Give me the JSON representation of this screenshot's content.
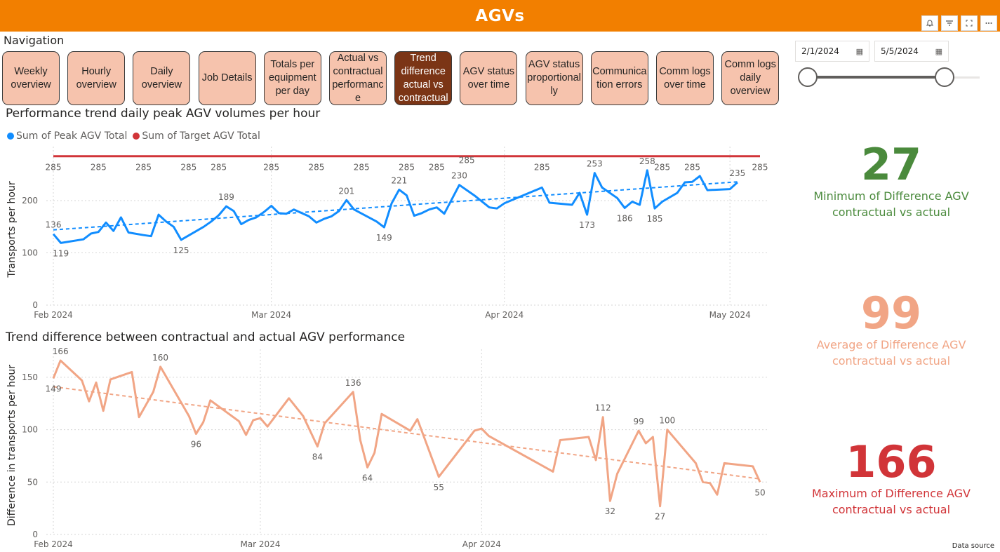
{
  "header": {
    "title": "AGVs"
  },
  "visual_header": {
    "icons": [
      "bell-icon",
      "filter-icon",
      "expand-icon",
      "more-options-icon"
    ]
  },
  "navigation": {
    "label": "Navigation",
    "buttons": [
      {
        "lines": [
          "Weekly",
          "overview"
        ]
      },
      {
        "lines": [
          "Hourly",
          "overview"
        ]
      },
      {
        "lines": [
          "Daily",
          "overview"
        ]
      },
      {
        "lines": [
          "Job Details"
        ]
      },
      {
        "lines": [
          "Totals per",
          "equipment",
          "per day"
        ]
      },
      {
        "lines": [
          "Actual vs",
          "contractual",
          "performanc",
          "e"
        ]
      },
      {
        "lines": [
          "Trend",
          "difference",
          "actual vs",
          "contractual"
        ],
        "active": true
      },
      {
        "lines": [
          "AGV status",
          "over time"
        ]
      },
      {
        "lines": [
          "AGV status",
          "proportional",
          "ly"
        ]
      },
      {
        "lines": [
          "Communica",
          "tion errors"
        ]
      },
      {
        "lines": [
          "Comm logs",
          "over time"
        ]
      },
      {
        "lines": [
          "Comm logs",
          "daily",
          "overview"
        ]
      }
    ]
  },
  "date_filter": {
    "start": "2/1/2024",
    "end": "5/5/2024"
  },
  "colors": {
    "header_bg": "#f27f00",
    "nav_btn_bg": "#f6c3ad",
    "nav_btn_active_bg": "#7b3516",
    "peak_series": "#118dff",
    "target_series": "#d13438",
    "diff_series": "#f1a585",
    "kpi_min": "#4a8a3c",
    "kpi_avg": "#f1a585",
    "kpi_max": "#d13438"
  },
  "kpis": {
    "min": {
      "value": "27",
      "label_lines": [
        "Minimum of Difference AGV",
        "contractual vs actual"
      ]
    },
    "avg": {
      "value": "99",
      "label_lines": [
        "Average of Difference AGV",
        "contractual vs actual"
      ]
    },
    "max": {
      "value": "166",
      "label_lines": [
        "Maximum of Difference AGV",
        "contractual vs actual"
      ]
    }
  },
  "footer": {
    "data_source": "Data source"
  },
  "chart_data": [
    {
      "type": "line",
      "title": "Performance trend daily peak AGV volumes per hour",
      "ylabel": "Transports per hour",
      "xlabel": "",
      "ylim": [
        0,
        290
      ],
      "yticks": [
        0,
        100,
        200
      ],
      "xlim": [
        "2024-02-01",
        "2024-05-05"
      ],
      "xticks": [
        {
          "date": "2024-02-01",
          "label": "Feb 2024"
        },
        {
          "date": "2024-03-01",
          "label": "Mar 2024"
        },
        {
          "date": "2024-04-01",
          "label": "Apr 2024"
        },
        {
          "date": "2024-05-01",
          "label": "May 2024"
        }
      ],
      "grid": true,
      "legend_position": "top-left",
      "series": [
        {
          "name": "Sum of Peak AGV Total",
          "trendline": {
            "start": 144,
            "end": 236
          },
          "points": [
            [
              "2024-02-01",
              136
            ],
            [
              "2024-02-02",
              119
            ],
            [
              "2024-02-05",
              126
            ],
            [
              "2024-02-06",
              137
            ],
            [
              "2024-02-07",
              140
            ],
            [
              "2024-02-08",
              158
            ],
            [
              "2024-02-09",
              142
            ],
            [
              "2024-02-10",
              168
            ],
            [
              "2024-02-11",
              139
            ],
            [
              "2024-02-13",
              134
            ],
            [
              "2024-02-14",
              132
            ],
            [
              "2024-02-15",
              173
            ],
            [
              "2024-02-16",
              160
            ],
            [
              "2024-02-17",
              150
            ],
            [
              "2024-02-18",
              125
            ],
            [
              "2024-02-21",
              150
            ],
            [
              "2024-02-22",
              160
            ],
            [
              "2024-02-23",
              172
            ],
            [
              "2024-02-24",
              189
            ],
            [
              "2024-02-25",
              180
            ],
            [
              "2024-02-26",
              155
            ],
            [
              "2024-02-27",
              163
            ],
            [
              "2024-02-28",
              168
            ],
            [
              "2024-02-29",
              178
            ],
            [
              "2024-03-01",
              190
            ],
            [
              "2024-03-02",
              176
            ],
            [
              "2024-03-03",
              175
            ],
            [
              "2024-03-04",
              183
            ],
            [
              "2024-03-06",
              170
            ],
            [
              "2024-03-07",
              158
            ],
            [
              "2024-03-08",
              165
            ],
            [
              "2024-03-09",
              170
            ],
            [
              "2024-03-10",
              180
            ],
            [
              "2024-03-11",
              201
            ],
            [
              "2024-03-12",
              183
            ],
            [
              "2024-03-15",
              160
            ],
            [
              "2024-03-16",
              149
            ],
            [
              "2024-03-17",
              195
            ],
            [
              "2024-03-18",
              221
            ],
            [
              "2024-03-19",
              210
            ],
            [
              "2024-03-20",
              171
            ],
            [
              "2024-03-21",
              176
            ],
            [
              "2024-03-22",
              183
            ],
            [
              "2024-03-23",
              187
            ],
            [
              "2024-03-24",
              175
            ],
            [
              "2024-03-26",
              230
            ],
            [
              "2024-03-28",
              210
            ],
            [
              "2024-03-30",
              187
            ],
            [
              "2024-03-31",
              185
            ],
            [
              "2024-04-01",
              195
            ],
            [
              "2024-04-06",
              225
            ],
            [
              "2024-04-07",
              196
            ],
            [
              "2024-04-10",
              192
            ],
            [
              "2024-04-11",
              215
            ],
            [
              "2024-04-12",
              173
            ],
            [
              "2024-04-13",
              253
            ],
            [
              "2024-04-14",
              225
            ],
            [
              "2024-04-16",
              205
            ],
            [
              "2024-04-17",
              186
            ],
            [
              "2024-04-18",
              198
            ],
            [
              "2024-04-19",
              192
            ],
            [
              "2024-04-20",
              258
            ],
            [
              "2024-04-21",
              185
            ],
            [
              "2024-04-22",
              198
            ],
            [
              "2024-04-24",
              215
            ],
            [
              "2024-04-25",
              235
            ],
            [
              "2024-04-26",
              236
            ],
            [
              "2024-04-27",
              247
            ],
            [
              "2024-04-28",
              220
            ],
            [
              "2024-05-01",
              222
            ],
            [
              "2024-05-02",
              235
            ]
          ],
          "labels": [
            [
              "2024-02-01",
              136
            ],
            [
              "2024-02-02",
              119
            ],
            [
              "2024-02-18",
              125
            ],
            [
              "2024-02-24",
              189
            ],
            [
              "2024-03-11",
              201
            ],
            [
              "2024-03-16",
              149
            ],
            [
              "2024-03-18",
              221
            ],
            [
              "2024-03-26",
              230
            ],
            [
              "2024-04-12",
              173
            ],
            [
              "2024-04-13",
              253
            ],
            [
              "2024-04-17",
              186
            ],
            [
              "2024-04-20",
              258
            ],
            [
              "2024-04-21",
              185
            ],
            [
              "2024-05-02",
              235
            ]
          ]
        },
        {
          "name": "Sum of Target AGV Total",
          "points": [
            [
              "2024-02-01",
              285
            ],
            [
              "2024-05-05",
              285
            ]
          ],
          "labels": [
            [
              "2024-02-01",
              285
            ],
            [
              "2024-02-07",
              285
            ],
            [
              "2024-02-13",
              285
            ],
            [
              "2024-02-19",
              285
            ],
            [
              "2024-02-23",
              285
            ],
            [
              "2024-03-01",
              285
            ],
            [
              "2024-03-07",
              285
            ],
            [
              "2024-03-13",
              285
            ],
            [
              "2024-03-19",
              285
            ],
            [
              "2024-03-23",
              285
            ],
            [
              "2024-04-06",
              285
            ],
            [
              "2024-04-22",
              285
            ],
            [
              "2024-04-26",
              285
            ],
            [
              "2024-05-05",
              285
            ]
          ],
          "extra_labels": [
            [
              "2024-03-27",
              285
            ]
          ]
        }
      ]
    },
    {
      "type": "line",
      "title": "Trend difference between contractual and actual AGV performance",
      "ylabel": "Difference in transports per hour",
      "xlabel": "",
      "ylim": [
        0,
        170
      ],
      "yticks": [
        0,
        50,
        100,
        150
      ],
      "xlim": [
        "2024-02-01",
        "2024-05-05"
      ],
      "xticks": [
        {
          "date": "2024-02-01",
          "label": "Feb 2024"
        },
        {
          "date": "2024-03-01",
          "label": "Mar 2024"
        },
        {
          "date": "2024-04-01",
          "label": "Apr 2024"
        }
      ],
      "grid": true,
      "series": [
        {
          "name": "Difference AGV contractual vs actual",
          "trendline": {
            "start": 141,
            "end": 53
          },
          "points": [
            [
              "2024-02-01",
              149
            ],
            [
              "2024-02-02",
              166
            ],
            [
              "2024-02-05",
              147
            ],
            [
              "2024-02-06",
              127
            ],
            [
              "2024-02-07",
              145
            ],
            [
              "2024-02-08",
              118
            ],
            [
              "2024-02-09",
              148
            ],
            [
              "2024-02-12",
              155
            ],
            [
              "2024-02-13",
              112
            ],
            [
              "2024-02-15",
              136
            ],
            [
              "2024-02-16",
              160
            ],
            [
              "2024-02-20",
              113
            ],
            [
              "2024-02-21",
              96
            ],
            [
              "2024-02-22",
              107
            ],
            [
              "2024-02-23",
              128
            ],
            [
              "2024-02-27",
              108
            ],
            [
              "2024-02-28",
              95
            ],
            [
              "2024-02-29",
              109
            ],
            [
              "2024-03-01",
              111
            ],
            [
              "2024-03-02",
              103
            ],
            [
              "2024-03-05",
              130
            ],
            [
              "2024-03-07",
              113
            ],
            [
              "2024-03-09",
              84
            ],
            [
              "2024-03-10",
              106
            ],
            [
              "2024-03-14",
              136
            ],
            [
              "2024-03-15",
              90
            ],
            [
              "2024-03-16",
              64
            ],
            [
              "2024-03-17",
              78
            ],
            [
              "2024-03-18",
              115
            ],
            [
              "2024-03-22",
              99
            ],
            [
              "2024-03-23",
              110
            ],
            [
              "2024-03-26",
              55
            ],
            [
              "2024-03-31",
              99
            ],
            [
              "2024-04-01",
              101
            ],
            [
              "2024-04-02",
              94
            ],
            [
              "2024-04-11",
              60
            ],
            [
              "2024-04-12",
              90
            ],
            [
              "2024-04-16",
              93
            ],
            [
              "2024-04-17",
              71
            ],
            [
              "2024-04-18",
              112
            ],
            [
              "2024-04-19",
              32
            ],
            [
              "2024-04-20",
              58
            ],
            [
              "2024-04-23",
              99
            ],
            [
              "2024-04-24",
              87
            ],
            [
              "2024-04-25",
              93
            ],
            [
              "2024-04-26",
              27
            ],
            [
              "2024-04-27",
              100
            ],
            [
              "2024-05-01",
              68
            ],
            [
              "2024-05-02",
              50
            ],
            [
              "2024-05-03",
              49
            ],
            [
              "2024-05-04",
              38
            ],
            [
              "2024-05-05",
              68
            ],
            [
              "2024-05-09",
              65
            ],
            [
              "2024-05-10",
              50
            ]
          ],
          "labels": [
            [
              "2024-02-01",
              149
            ],
            [
              "2024-02-02",
              166
            ],
            [
              "2024-02-16",
              160
            ],
            [
              "2024-02-21",
              96
            ],
            [
              "2024-03-09",
              84
            ],
            [
              "2024-03-14",
              136
            ],
            [
              "2024-03-16",
              64
            ],
            [
              "2024-03-26",
              55
            ],
            [
              "2024-04-18",
              112
            ],
            [
              "2024-04-19",
              32
            ],
            [
              "2024-04-23",
              99
            ],
            [
              "2024-04-26",
              27
            ],
            [
              "2024-04-27",
              100
            ],
            [
              "2024-05-10",
              50
            ]
          ]
        }
      ]
    }
  ]
}
